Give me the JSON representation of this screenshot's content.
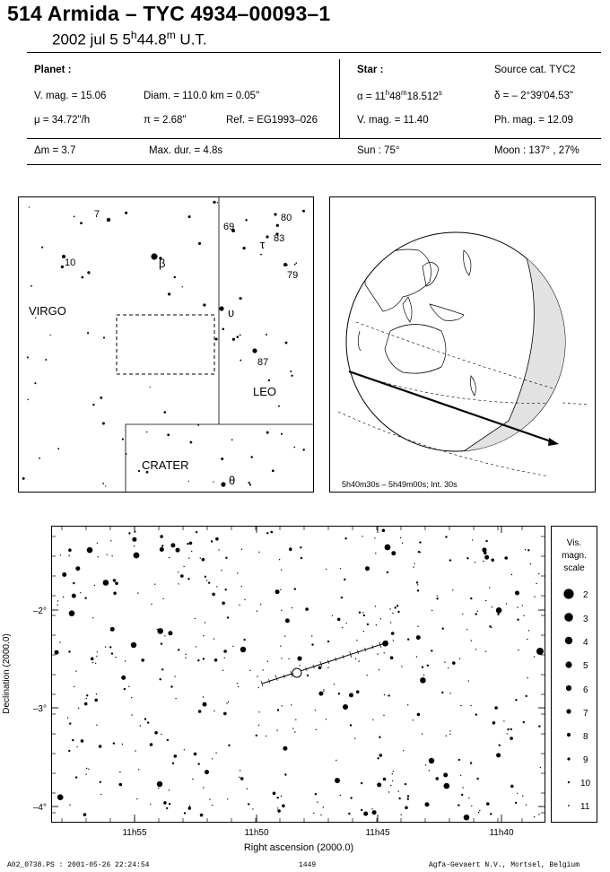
{
  "header": {
    "title": "514 Armida  –  TYC 4934–00093–1",
    "date": "2002 jul  5   5",
    "time_h": "h",
    "time_min": "44.8",
    "time_m": "m",
    "time_ut": " U.T."
  },
  "planet": {
    "heading": "Planet :",
    "vmag": "V. mag. = 15.06",
    "diam": "Diam. = 110.0 km = 0.05\"",
    "mu": "μ =  34.72\"/h",
    "pi": "π =  2.68\"",
    "ref": "Ref. = EG1993–026"
  },
  "star": {
    "heading": "Star :",
    "source": "Source cat.  TYC2",
    "alpha_pre": "α = 11",
    "alpha_h": "h",
    "alpha_mid": "48",
    "alpha_m": "m",
    "alpha_val": "18.512",
    "alpha_s": "s",
    "delta": "δ = – 2°39'04.53\"",
    "vmag": "V. mag. = 11.40",
    "phmag": "Ph. mag. = 12.09"
  },
  "event": {
    "dm": "Δm = 3.7",
    "maxdur": "Max. dur. = 4.8s",
    "sun": "Sun :  75°",
    "moon": "Moon : 137° , 27%"
  },
  "finder": {
    "labels": [
      "VIRGO",
      "LEO",
      "CRATER"
    ],
    "star_labels": [
      "7",
      "10",
      "β",
      "69",
      "80",
      "τ",
      "83",
      "79",
      "υ",
      "87",
      "θ"
    ]
  },
  "globe": {
    "caption": "5h40m30s –  5h49m00s; Int. 30s"
  },
  "starchart": {
    "xlabel": "Right ascension (2000.0)",
    "ylabel": "Declination (2000.0)",
    "xticks": [
      "11h55",
      "11h50",
      "11h45",
      "11h40"
    ],
    "yticks": [
      "–2°",
      "–3°",
      "–4°"
    ]
  },
  "legend": {
    "title": [
      "Vis.",
      "magn.",
      "scale"
    ],
    "mags": [
      "2",
      "3",
      "4",
      "5",
      "6",
      "7",
      "8",
      "9",
      "10",
      "11"
    ]
  },
  "footer": {
    "left": "A02_0738.PS :  2001-05-26 22:24:54",
    "center": "1449",
    "right": "Agfa-Gevaert N.V., Mortsel, Belgium"
  }
}
